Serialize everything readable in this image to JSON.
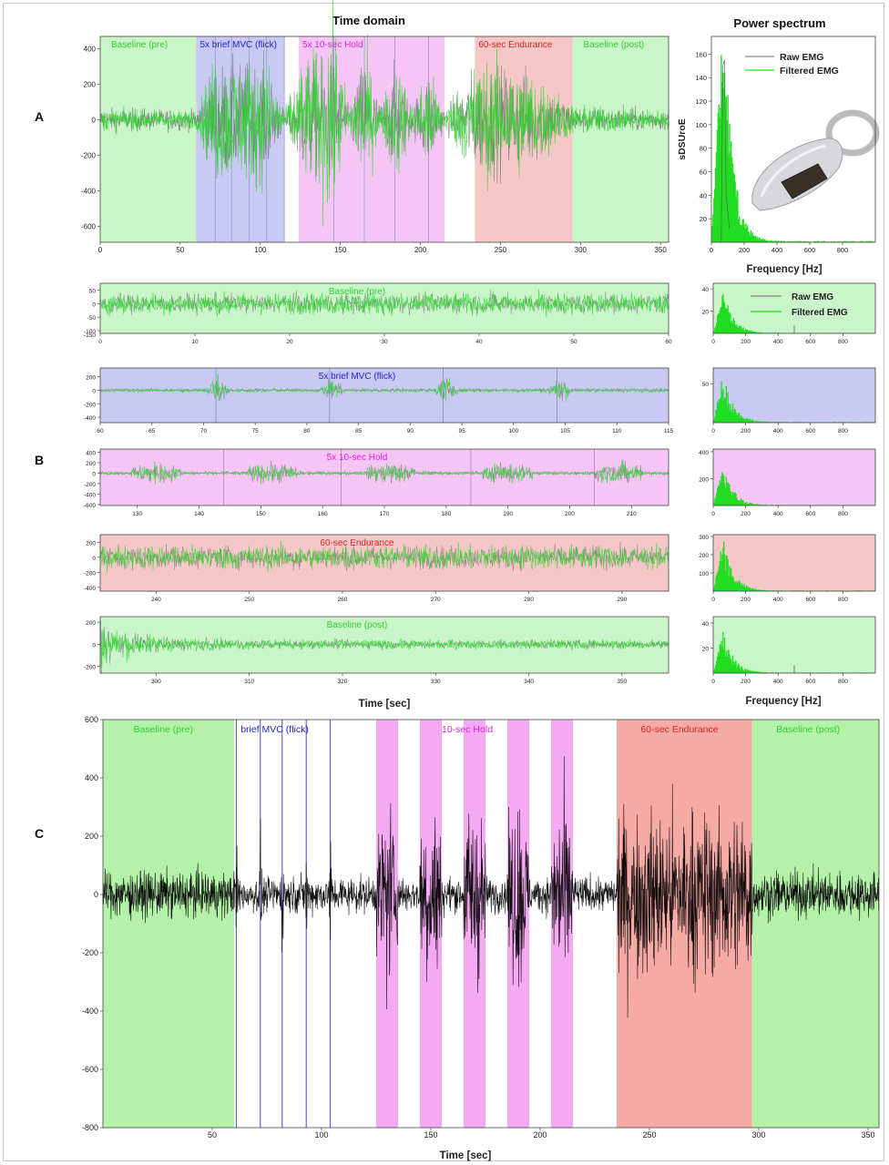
{
  "figure": {
    "header_time": "Time domain",
    "header_power": "Power spectrum",
    "panel_labels": [
      "A",
      "B",
      "C"
    ],
    "xlabel_time": "Time [sec]",
    "xlabel_freq": "Frequency [Hz]",
    "ylabel_power": "sDSUroE"
  },
  "colors": {
    "green_region": "#c9f5c9",
    "blue_region": "#c9c9f3",
    "magenta_region": "#f5c6f5",
    "red_region": "#f6c7c7",
    "raw_trace": "#6e6e6e",
    "filtered_trace": "#22dd22",
    "black_trace": "#000000",
    "label_green": "#33cc33",
    "label_blue": "#2222cc",
    "label_magenta": "#dd22dd",
    "label_red": "#dd2222"
  },
  "legend": [
    "Raw EMG",
    "Filtered EMG"
  ],
  "chart_data": [
    {
      "id": "A-time",
      "type": "line",
      "title": "Time domain",
      "xlabel": "",
      "xlim": [
        0,
        355
      ],
      "ylim": [
        -690,
        470
      ],
      "xticks": [
        0,
        50,
        100,
        150,
        200,
        250,
        300,
        350
      ],
      "yticks": [
        -600,
        -400,
        -200,
        0,
        200,
        400
      ],
      "series": [
        {
          "name": "Raw EMG",
          "x": [
            0,
            60,
            72,
            82,
            93,
            104,
            115,
            125,
            135,
            145,
            155,
            165,
            175,
            185,
            195,
            205,
            215,
            235,
            265,
            295,
            355
          ],
          "amp": [
            70,
            60,
            330,
            330,
            330,
            330,
            55,
            300,
            350,
            380,
            80,
            380,
            80,
            330,
            80,
            300,
            60,
            320,
            300,
            80,
            60
          ]
        },
        {
          "name": "Filtered EMG",
          "x": [
            0,
            60,
            72,
            82,
            93,
            104,
            115,
            125,
            135,
            145,
            155,
            165,
            175,
            185,
            195,
            205,
            215,
            235,
            265,
            295,
            355
          ],
          "amp": [
            60,
            50,
            380,
            370,
            360,
            370,
            50,
            320,
            420,
            650,
            90,
            430,
            90,
            360,
            90,
            330,
            60,
            350,
            330,
            90,
            55
          ]
        }
      ],
      "regions": [
        {
          "label": "Baseline (pre)",
          "x": [
            0,
            60
          ],
          "color": "green"
        },
        {
          "label": "5x brief MVC (flick)",
          "x": [
            60,
            115
          ],
          "color": "blue"
        },
        {
          "label": "5x 10-sec Hold",
          "x": [
            124,
            215
          ],
          "color": "magenta"
        },
        {
          "label": "60-sec Endurance",
          "x": [
            234,
            295
          ],
          "color": "red"
        },
        {
          "label": "Baseline (post)",
          "x": [
            295,
            355
          ],
          "color": "green"
        }
      ],
      "event_lines": [
        72,
        82,
        93,
        104,
        115,
        146,
        165,
        184,
        205
      ]
    },
    {
      "id": "A-power",
      "type": "bar",
      "title": "Power spectrum",
      "xlabel": "Frequency [Hz]",
      "ylabel": "sDSUroE",
      "xlim": [
        0,
        1000
      ],
      "ylim": [
        0,
        175
      ],
      "xticks": [
        0,
        200,
        400,
        600,
        800
      ],
      "yticks": [
        20,
        40,
        60,
        80,
        100,
        120,
        140,
        160
      ],
      "peak": {
        "x": 70,
        "y": 170
      },
      "legend": [
        "Raw EMG",
        "Filtered EMG"
      ]
    },
    {
      "id": "B1-time",
      "type": "line",
      "title": "Baseline (pre)",
      "xlim": [
        0,
        60
      ],
      "ylim": [
        -110,
        75
      ],
      "xticks": [
        0,
        10,
        20,
        30,
        40,
        50,
        60
      ],
      "yticks": [
        -100,
        -50,
        0,
        50
      ],
      "yticklabels": [
        "-100",
        "-50",
        "0",
        "50"
      ],
      "extra_ytick": "-150",
      "region": "green",
      "bursts": [],
      "base_amp": 55
    },
    {
      "id": "B2-time",
      "type": "line",
      "title": "5x brief MVC (flick)",
      "xlim": [
        60,
        115
      ],
      "ylim": [
        -480,
        330
      ],
      "xticks": [
        60,
        65,
        70,
        75,
        80,
        85,
        90,
        95,
        100,
        105,
        110,
        115
      ],
      "yticks": [
        -400,
        -200,
        0,
        200
      ],
      "region": "blue",
      "bursts": [
        71.5,
        82.5,
        93.5,
        104.5
      ],
      "base_amp": 40,
      "burst_amp": 260
    },
    {
      "id": "B3-time",
      "type": "line",
      "title": "5x 10-sec Hold",
      "xlim": [
        124,
        216
      ],
      "ylim": [
        -620,
        460
      ],
      "xticks": [
        130,
        140,
        150,
        160,
        170,
        180,
        190,
        200,
        210
      ],
      "yticks": [
        -600,
        -400,
        -200,
        0,
        200,
        400
      ],
      "region": "magenta",
      "bursts": [
        135,
        154,
        173,
        192,
        210
      ],
      "burst_width": 8,
      "base_amp": 50,
      "burst_amp": 300
    },
    {
      "id": "B4-time",
      "type": "line",
      "title": "60-sec Endurance",
      "xlim": [
        234,
        295
      ],
      "ylim": [
        -450,
        300
      ],
      "xticks": [
        240,
        250,
        260,
        270,
        280,
        290
      ],
      "yticks": [
        -400,
        -200,
        0,
        200
      ],
      "region": "red",
      "bursts": [],
      "base_amp": 230
    },
    {
      "id": "B5-time",
      "type": "line",
      "title": "Baseline (post)",
      "xlim": [
        294,
        355
      ],
      "ylim": [
        -260,
        250
      ],
      "xticks": [
        300,
        310,
        320,
        330,
        340,
        350
      ],
      "yticks": [
        -200,
        0,
        200
      ],
      "region": "green",
      "bursts": [],
      "base_amp": 60,
      "decay_start": 220
    },
    {
      "id": "B1-power",
      "type": "bar",
      "xlim": [
        0,
        1000
      ],
      "ylim": [
        0,
        45
      ],
      "yticks": [
        20,
        40
      ],
      "xticks": [
        0,
        200,
        400,
        600,
        800
      ],
      "peak": {
        "x": 60,
        "y": 35
      },
      "region": "green",
      "legend": [
        "Raw EMG",
        "Filtered EMG"
      ]
    },
    {
      "id": "B2-power",
      "type": "bar",
      "xlim": [
        0,
        1000
      ],
      "ylim": [
        0,
        70
      ],
      "yticks": [
        50
      ],
      "xticks": [
        0,
        200,
        400,
        600,
        800
      ],
      "peak": {
        "x": 60,
        "y": 60
      },
      "region": "blue"
    },
    {
      "id": "B3-power",
      "type": "bar",
      "xlim": [
        0,
        1000
      ],
      "ylim": [
        0,
        420
      ],
      "yticks": [
        200,
        400
      ],
      "xticks": [
        0,
        200,
        400,
        600,
        800
      ],
      "peak": {
        "x": 60,
        "y": 290
      },
      "region": "magenta"
    },
    {
      "id": "B4-power",
      "type": "bar",
      "xlim": [
        0,
        1000
      ],
      "ylim": [
        0,
        310
      ],
      "yticks": [
        100,
        200,
        300
      ],
      "xticks": [
        0,
        200,
        400,
        600,
        800
      ],
      "peak": {
        "x": 60,
        "y": 270
      },
      "region": "red"
    },
    {
      "id": "B5-power",
      "type": "bar",
      "xlim": [
        0,
        1000
      ],
      "ylim": [
        0,
        45
      ],
      "yticks": [
        20,
        40
      ],
      "xticks": [
        0,
        200,
        400,
        600,
        800
      ],
      "peak": {
        "x": 60,
        "y": 32
      },
      "region": "green"
    },
    {
      "id": "C-time",
      "type": "line",
      "xlabel": "Time [sec]",
      "xlim": [
        0,
        355
      ],
      "ylim": [
        -800,
        600
      ],
      "xticks": [
        50,
        100,
        150,
        200,
        250,
        300,
        350
      ],
      "yticks": [
        -800,
        -600,
        -400,
        -200,
        0,
        200,
        400,
        600
      ],
      "regions": [
        {
          "label": "Baseline (pre)",
          "x": [
            0,
            60
          ],
          "color": "green"
        },
        {
          "label": "brief MVC (flick)",
          "x": [
            67,
            110
          ],
          "color": "none"
        },
        {
          "label": "10-sec Hold",
          "x": [
            155,
            185
          ],
          "color": "none"
        },
        {
          "label": "60-sec Endurance",
          "x": [
            235,
            297
          ],
          "color": "red"
        },
        {
          "label": "Baseline (post)",
          "x": [
            297,
            355
          ],
          "color": "green"
        }
      ],
      "hold_bands": [
        [
          125,
          135
        ],
        [
          145,
          155
        ],
        [
          165,
          175
        ],
        [
          185,
          195
        ],
        [
          205,
          215
        ]
      ],
      "flick_lines": [
        61,
        72,
        82,
        93,
        104
      ],
      "amp": {
        "baseline": 90,
        "between": 70,
        "flick": 240,
        "hold": 380,
        "endurance": 320
      }
    }
  ]
}
